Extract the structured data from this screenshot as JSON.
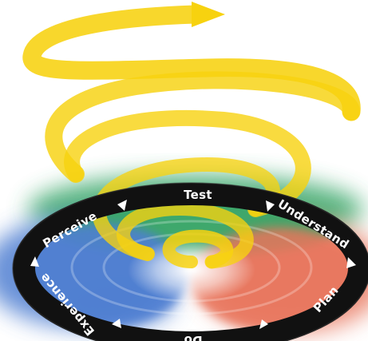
{
  "diagram": {
    "stages": [
      "Test",
      "Understand",
      "Plan",
      "Do",
      "Experience",
      "Perceive"
    ]
  },
  "colors": {
    "spiral": "#f7d20f",
    "ring": "#111111",
    "quadrant_green": "#3aa76a",
    "quadrant_red": "#e8755c",
    "quadrant_blue": "#4f7fd1",
    "label_text": "#ffffff",
    "arrow_marker": "#ffffff"
  },
  "icons": [
    "spiral-arrow-icon",
    "triangle-marker-icon"
  ]
}
